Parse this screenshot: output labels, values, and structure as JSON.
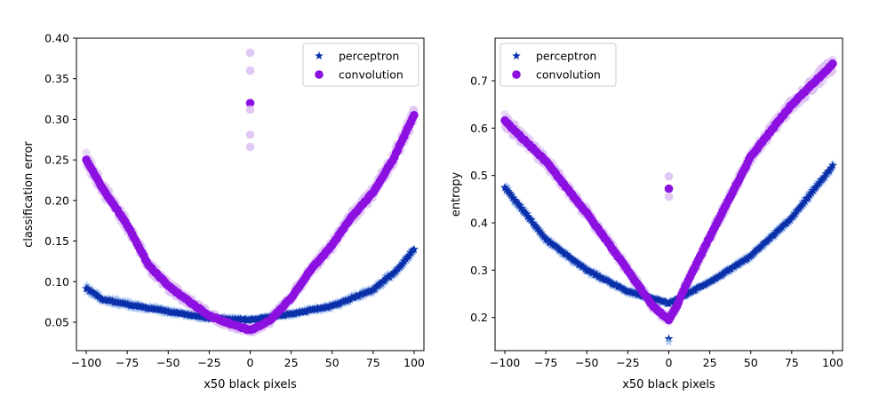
{
  "chart_data": [
    {
      "type": "scatter",
      "xlabel": "x50 black pixels",
      "ylabel": "classification error",
      "xlim": [
        -106,
        106
      ],
      "ylim": [
        0.015,
        0.4
      ],
      "xticks": [
        -100,
        -75,
        -50,
        -25,
        0,
        25,
        50,
        75,
        100
      ],
      "xtick_labels": [
        "−100",
        "−75",
        "−50",
        "−25",
        "0",
        "25",
        "50",
        "75",
        "100"
      ],
      "yticks": [
        0.05,
        0.1,
        0.15,
        0.2,
        0.25,
        0.3,
        0.35,
        0.4
      ],
      "ytick_labels": [
        "0.05",
        "0.10",
        "0.15",
        "0.20",
        "0.25",
        "0.30",
        "0.35",
        "0.40"
      ],
      "legend_position": "top-right",
      "series": [
        {
          "name": "perceptron",
          "marker": "star",
          "color": "#0a2faa",
          "light_color": "#9ec0ee",
          "x": [
            -100,
            -90,
            -75,
            -50,
            -25,
            0,
            25,
            50,
            75,
            90,
            100
          ],
          "y": [
            0.092,
            0.078,
            0.072,
            0.063,
            0.055,
            0.053,
            0.06,
            0.07,
            0.09,
            0.115,
            0.14
          ]
        },
        {
          "name": "convolution",
          "marker": "circle",
          "color": "#8c10e0",
          "light_color": "#ddbef2",
          "x": [
            -100,
            -90,
            -75,
            -62,
            -50,
            -37,
            -25,
            -12,
            0,
            12,
            25,
            37,
            50,
            62,
            75,
            87,
            100
          ],
          "y": [
            0.25,
            0.215,
            0.17,
            0.12,
            0.095,
            0.075,
            0.058,
            0.048,
            0.04,
            0.052,
            0.08,
            0.115,
            0.145,
            0.18,
            0.21,
            0.25,
            0.305
          ],
          "outliers": [
            {
              "x": 0,
              "y": 0.32
            },
            {
              "x": 0,
              "y": 0.382
            },
            {
              "x": 0,
              "y": 0.36
            },
            {
              "x": 0,
              "y": 0.312
            },
            {
              "x": 0,
              "y": 0.281
            },
            {
              "x": 0,
              "y": 0.266
            }
          ]
        }
      ]
    },
    {
      "type": "scatter",
      "xlabel": "x50 black pixels",
      "ylabel": "entropy",
      "xlim": [
        -106,
        106
      ],
      "ylim": [
        0.13,
        0.79
      ],
      "xticks": [
        -100,
        -75,
        -50,
        -25,
        0,
        25,
        50,
        75,
        100
      ],
      "xtick_labels": [
        "−100",
        "−75",
        "−50",
        "−25",
        "0",
        "25",
        "50",
        "75",
        "100"
      ],
      "yticks": [
        0.2,
        0.3,
        0.4,
        0.5,
        0.6,
        0.7
      ],
      "ytick_labels": [
        "0.2",
        "0.3",
        "0.4",
        "0.5",
        "0.6",
        "0.7"
      ],
      "legend_position": "top-left",
      "series": [
        {
          "name": "perceptron",
          "marker": "star",
          "color": "#0a2faa",
          "light_color": "#9ec0ee",
          "x": [
            -100,
            -75,
            -50,
            -25,
            0,
            25,
            50,
            75,
            100
          ],
          "y": [
            0.475,
            0.365,
            0.3,
            0.255,
            0.23,
            0.275,
            0.33,
            0.41,
            0.52
          ],
          "outliers": [
            {
              "x": 0,
              "y": 0.155
            },
            {
              "x": 0,
              "y": 0.148
            }
          ]
        },
        {
          "name": "convolution",
          "marker": "circle",
          "color": "#8c10e0",
          "light_color": "#ddbef2",
          "x": [
            -100,
            -75,
            -50,
            -25,
            -10,
            0,
            5,
            10,
            25,
            50,
            75,
            100
          ],
          "y": [
            0.615,
            0.53,
            0.42,
            0.3,
            0.225,
            0.195,
            0.225,
            0.265,
            0.37,
            0.54,
            0.65,
            0.735
          ],
          "outliers": [
            {
              "x": 0,
              "y": 0.472
            },
            {
              "x": 0,
              "y": 0.498
            },
            {
              "x": 0,
              "y": 0.455
            }
          ]
        }
      ]
    }
  ]
}
